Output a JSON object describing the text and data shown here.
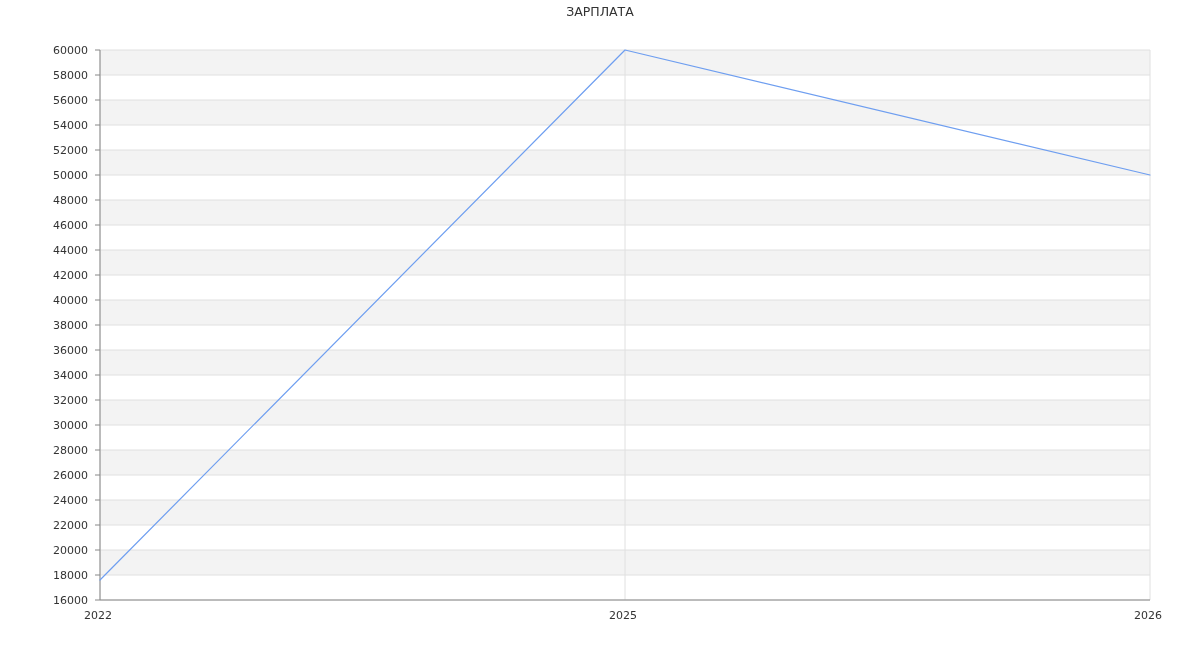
{
  "chart_data": {
    "type": "line",
    "title": "ЗАРПЛАТА",
    "categories": [
      "2022",
      "2025",
      "2026"
    ],
    "series": [
      {
        "color": "#6e9ef0",
        "values": [
          17600,
          60000,
          50000
        ]
      }
    ],
    "ylim": [
      16000,
      60000
    ],
    "yticks": [
      16000,
      18000,
      20000,
      22000,
      24000,
      26000,
      28000,
      30000,
      32000,
      34000,
      36000,
      38000,
      40000,
      42000,
      44000,
      46000,
      48000,
      50000,
      52000,
      54000,
      56000,
      58000,
      60000
    ],
    "grid": true,
    "marker": "none",
    "line_style": "solid"
  }
}
